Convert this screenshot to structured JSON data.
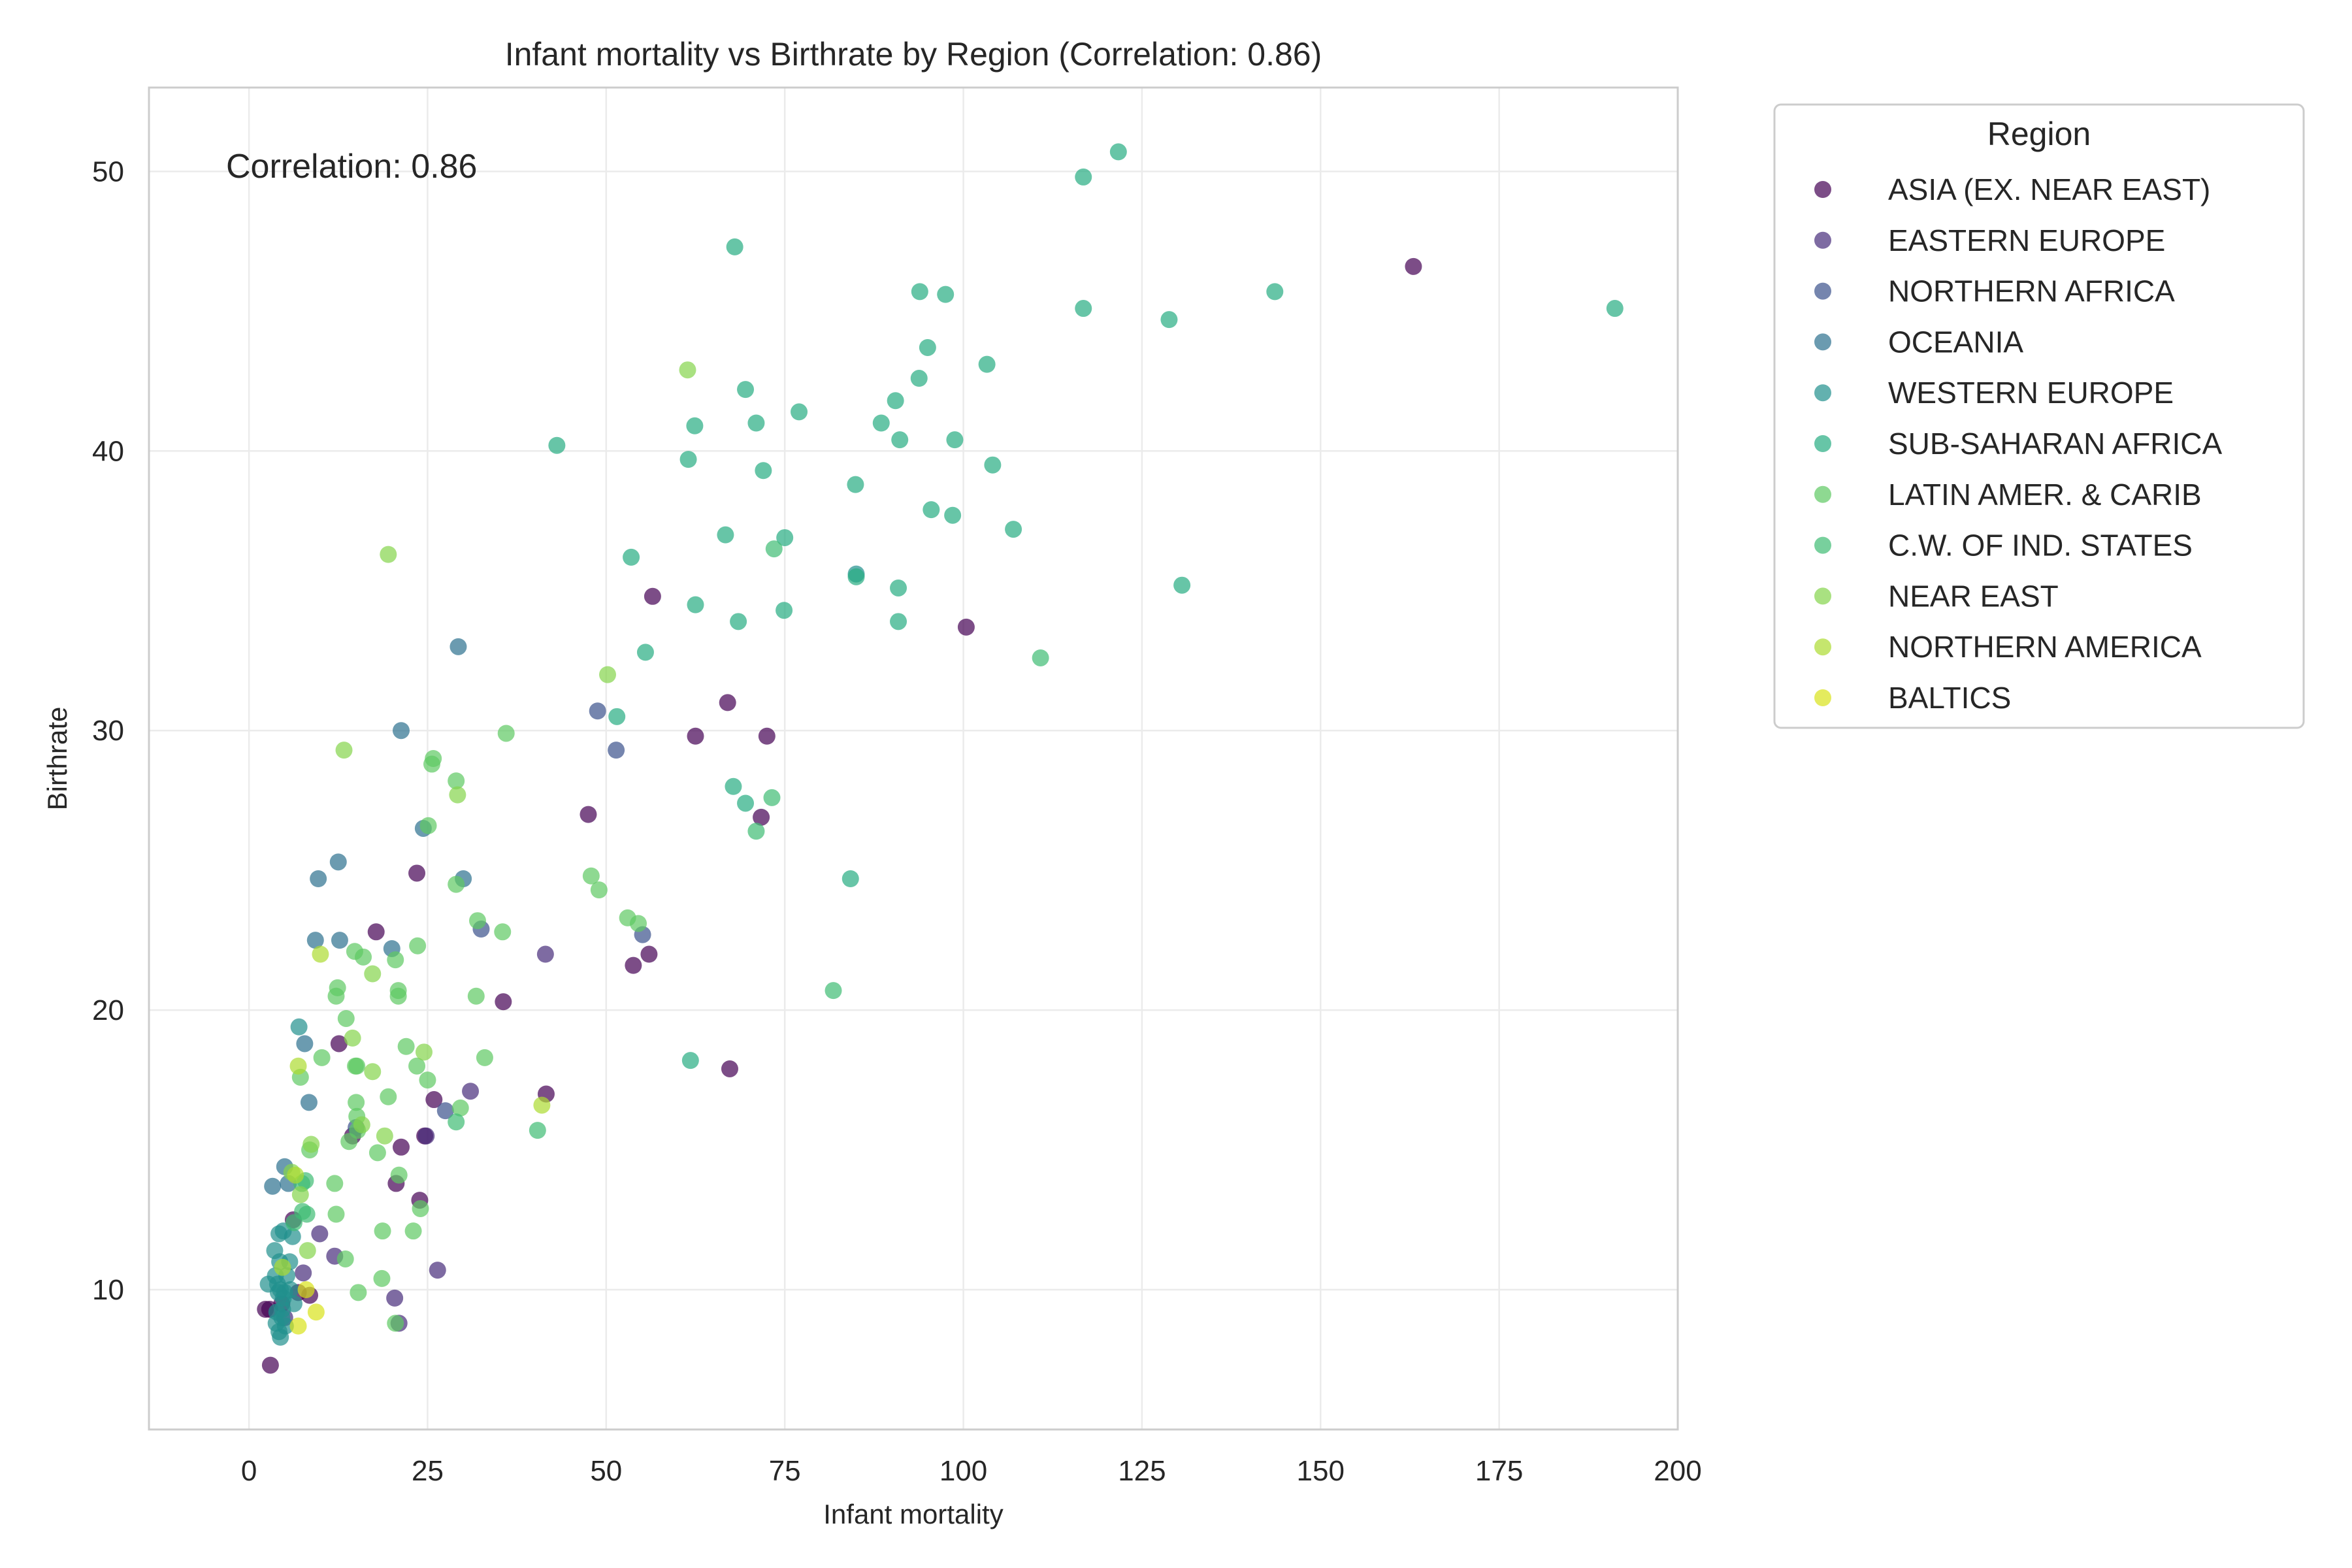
{
  "chart_data": {
    "type": "scatter",
    "title": "Infant mortality vs Birthrate by Region (Correlation: 0.86)",
    "annotation": "Correlation: 0.86",
    "xlabel": "Infant mortality",
    "ylabel": "Birthrate",
    "xlim": [
      -14,
      200
    ],
    "ylim": [
      5.0,
      53.0
    ],
    "x_ticks": [
      0,
      25,
      50,
      75,
      100,
      125,
      150,
      175,
      200
    ],
    "y_ticks": [
      10,
      20,
      30,
      40,
      50
    ],
    "grid": true,
    "legend": {
      "title": "Region",
      "placement": "outside-top-right"
    },
    "series": [
      {
        "name": "ASIA (EX. NEAR EAST)",
        "color": "#440154",
        "points": [
          [
            163,
            46.6
          ],
          [
            100.4,
            33.7
          ],
          [
            56.5,
            34.8
          ],
          [
            62.5,
            29.8
          ],
          [
            67.0,
            31.0
          ],
          [
            72.5,
            29.8
          ],
          [
            71.7,
            26.9
          ],
          [
            47.5,
            27.0
          ],
          [
            23.5,
            24.9
          ],
          [
            56.0,
            22.0
          ],
          [
            53.8,
            21.6
          ],
          [
            35.6,
            20.3
          ],
          [
            17.8,
            22.8
          ],
          [
            12.6,
            18.8
          ],
          [
            41.6,
            17.0
          ],
          [
            67.3,
            17.9
          ],
          [
            14.5,
            15.5
          ],
          [
            21.3,
            15.1
          ],
          [
            24.6,
            15.5
          ],
          [
            25.9,
            16.8
          ],
          [
            20.6,
            13.8
          ],
          [
            23.9,
            13.2
          ],
          [
            6.2,
            12.5
          ],
          [
            3.0,
            7.3
          ],
          [
            2.9,
            9.3
          ],
          [
            2.3,
            9.3
          ],
          [
            4.6,
            9.5
          ],
          [
            8.5,
            9.8
          ],
          [
            6.9,
            9.9
          ]
        ]
      },
      {
        "name": "EASTERN EUROPE",
        "color": "#472c7a",
        "points": [
          [
            41.5,
            22.0
          ],
          [
            31.0,
            17.1
          ],
          [
            24.8,
            15.5
          ],
          [
            26.4,
            10.7
          ],
          [
            20.4,
            9.7
          ],
          [
            21.0,
            8.8
          ],
          [
            9.9,
            12.0
          ],
          [
            7.6,
            10.6
          ],
          [
            12.0,
            11.2
          ],
          [
            5.0,
            9.0
          ]
        ]
      },
      {
        "name": "NORTHERN AFRICA",
        "color": "#3b518b",
        "points": [
          [
            48.8,
            30.7
          ],
          [
            51.4,
            29.3
          ],
          [
            55.1,
            22.7
          ],
          [
            32.5,
            22.9
          ],
          [
            27.5,
            16.4
          ],
          [
            15.0,
            15.8
          ]
        ]
      },
      {
        "name": "OCEANIA",
        "color": "#2c718e",
        "points": [
          [
            29.3,
            33.0
          ],
          [
            21.3,
            30.0
          ],
          [
            24.4,
            26.5
          ],
          [
            30.0,
            24.7
          ],
          [
            12.5,
            25.3
          ],
          [
            9.7,
            24.7
          ],
          [
            9.3,
            22.5
          ],
          [
            12.7,
            22.5
          ],
          [
            20.0,
            22.2
          ],
          [
            7.8,
            18.8
          ],
          [
            8.4,
            16.7
          ],
          [
            5.5,
            13.8
          ],
          [
            3.3,
            13.7
          ],
          [
            5.0,
            14.4
          ]
        ]
      },
      {
        "name": "WESTERN EUROPE",
        "color": "#21908d",
        "points": [
          [
            85.0,
            35.6
          ],
          [
            7.0,
            19.4
          ],
          [
            3.6,
            11.4
          ],
          [
            4.2,
            12.0
          ],
          [
            4.8,
            12.1
          ],
          [
            5.7,
            11.0
          ],
          [
            6.1,
            11.9
          ],
          [
            4.4,
            10.0
          ],
          [
            4.0,
            10.2
          ],
          [
            4.7,
            9.3
          ],
          [
            5.0,
            9.9
          ],
          [
            5.3,
            10.5
          ],
          [
            3.8,
            8.8
          ],
          [
            4.2,
            8.5
          ],
          [
            4.4,
            8.3
          ],
          [
            5.1,
            8.7
          ],
          [
            4.8,
            9.7
          ],
          [
            3.7,
            10.5
          ],
          [
            5.8,
            10.0
          ],
          [
            4.3,
            11.0
          ],
          [
            2.7,
            10.2
          ],
          [
            3.9,
            9.2
          ],
          [
            4.6,
            9.0
          ],
          [
            6.3,
            9.5
          ],
          [
            4.1,
            9.9
          ]
        ]
      },
      {
        "name": "SUB-SAHARAN AFRICA",
        "color": "#27ad81",
        "points": [
          [
            121.7,
            50.7
          ],
          [
            116.8,
            49.8
          ],
          [
            68.0,
            47.3
          ],
          [
            93.9,
            45.7
          ],
          [
            97.5,
            45.6
          ],
          [
            116.8,
            45.1
          ],
          [
            143.6,
            45.7
          ],
          [
            128.8,
            44.7
          ],
          [
            191.2,
            45.1
          ],
          [
            95.0,
            43.7
          ],
          [
            103.3,
            43.1
          ],
          [
            93.8,
            42.6
          ],
          [
            69.5,
            42.2
          ],
          [
            62.4,
            40.9
          ],
          [
            71.0,
            41.0
          ],
          [
            77.0,
            41.4
          ],
          [
            88.5,
            41.0
          ],
          [
            90.5,
            41.8
          ],
          [
            91.1,
            40.4
          ],
          [
            98.8,
            40.4
          ],
          [
            104.1,
            39.5
          ],
          [
            61.5,
            39.7
          ],
          [
            43.1,
            40.2
          ],
          [
            72.0,
            39.3
          ],
          [
            84.9,
            38.8
          ],
          [
            95.5,
            37.9
          ],
          [
            98.5,
            37.7
          ],
          [
            107.0,
            37.2
          ],
          [
            66.7,
            37.0
          ],
          [
            75.0,
            36.9
          ],
          [
            53.5,
            36.2
          ],
          [
            85.0,
            35.5
          ],
          [
            90.9,
            35.1
          ],
          [
            130.6,
            35.2
          ],
          [
            62.5,
            34.5
          ],
          [
            74.9,
            34.3
          ],
          [
            68.5,
            33.9
          ],
          [
            90.9,
            33.9
          ],
          [
            55.5,
            32.8
          ],
          [
            51.5,
            30.5
          ],
          [
            67.8,
            28.0
          ],
          [
            69.5,
            27.4
          ],
          [
            84.2,
            24.7
          ],
          [
            61.8,
            18.2
          ]
        ]
      },
      {
        "name": "LATIN AMER. & CARIB",
        "color": "#5ec962",
        "points": [
          [
            36.0,
            29.9
          ],
          [
            25.6,
            28.8
          ],
          [
            25.8,
            29.0
          ],
          [
            29.0,
            28.2
          ],
          [
            25.1,
            26.6
          ],
          [
            29.0,
            24.5
          ],
          [
            47.9,
            24.8
          ],
          [
            49.0,
            24.3
          ],
          [
            53.0,
            23.3
          ],
          [
            54.5,
            23.1
          ],
          [
            32.0,
            23.2
          ],
          [
            35.5,
            22.8
          ],
          [
            14.8,
            22.1
          ],
          [
            16.0,
            21.9
          ],
          [
            20.5,
            21.8
          ],
          [
            23.6,
            22.3
          ],
          [
            12.4,
            20.8
          ],
          [
            12.2,
            20.5
          ],
          [
            20.9,
            20.7
          ],
          [
            20.9,
            20.5
          ],
          [
            31.8,
            20.5
          ],
          [
            13.6,
            19.7
          ],
          [
            22.0,
            18.7
          ],
          [
            10.2,
            18.3
          ],
          [
            14.9,
            18.0
          ],
          [
            15.1,
            18.0
          ],
          [
            23.5,
            18.0
          ],
          [
            25.0,
            17.5
          ],
          [
            33.0,
            18.3
          ],
          [
            7.2,
            17.6
          ],
          [
            19.5,
            16.9
          ],
          [
            15.0,
            16.7
          ],
          [
            15.1,
            16.2
          ],
          [
            29.6,
            16.5
          ],
          [
            14.0,
            15.3
          ],
          [
            15.2,
            15.7
          ],
          [
            18.0,
            14.9
          ],
          [
            8.5,
            15.0
          ],
          [
            12.0,
            13.8
          ],
          [
            21.0,
            14.1
          ],
          [
            24.0,
            12.9
          ],
          [
            12.2,
            12.7
          ],
          [
            18.7,
            12.1
          ],
          [
            23.0,
            12.1
          ],
          [
            13.5,
            11.1
          ],
          [
            15.3,
            9.9
          ],
          [
            18.6,
            10.4
          ],
          [
            20.5,
            8.8
          ]
        ]
      },
      {
        "name": "C.W. OF IND. STATES",
        "color": "#3fbc73",
        "points": [
          [
            110.8,
            32.6
          ],
          [
            73.2,
            27.6
          ],
          [
            71.0,
            26.4
          ],
          [
            81.8,
            20.7
          ],
          [
            73.5,
            36.5
          ],
          [
            29.0,
            16.0
          ],
          [
            40.4,
            15.7
          ],
          [
            7.5,
            12.8
          ],
          [
            8.1,
            12.7
          ],
          [
            7.4,
            13.8
          ],
          [
            6.3,
            12.4
          ],
          [
            7.9,
            13.9
          ]
        ]
      },
      {
        "name": "NEAR EAST",
        "color": "#84d44b",
        "points": [
          [
            61.4,
            42.9
          ],
          [
            19.5,
            36.3
          ],
          [
            13.3,
            29.3
          ],
          [
            50.2,
            32.0
          ],
          [
            29.2,
            27.7
          ],
          [
            24.5,
            18.5
          ],
          [
            17.3,
            21.3
          ],
          [
            17.3,
            17.8
          ],
          [
            14.5,
            19.0
          ],
          [
            19.0,
            15.5
          ],
          [
            15.8,
            15.9
          ],
          [
            8.7,
            15.2
          ],
          [
            6.0,
            14.2
          ],
          [
            8.2,
            11.4
          ],
          [
            7.2,
            13.4
          ]
        ]
      },
      {
        "name": "NORTHERN AMERICA",
        "color": "#addc30",
        "points": [
          [
            10.0,
            22.0
          ],
          [
            41.0,
            16.6
          ],
          [
            6.9,
            18.0
          ],
          [
            6.5,
            14.1
          ],
          [
            4.7,
            10.8
          ]
        ]
      },
      {
        "name": "BALTICS",
        "color": "#d8e219",
        "points": [
          [
            9.4,
            9.2
          ],
          [
            6.9,
            8.7
          ],
          [
            8.0,
            10.0
          ]
        ]
      }
    ]
  }
}
